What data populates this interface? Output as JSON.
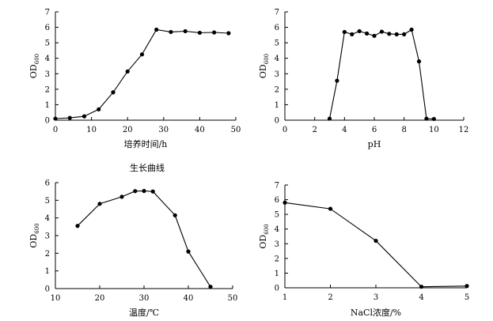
{
  "chart_data": [
    {
      "type": "line",
      "title": "",
      "caption": "生长曲线",
      "xlabel": "培养时间/h",
      "ylabel": "OD",
      "ylabel_sub": "600",
      "xlim": [
        0,
        50
      ],
      "ylim": [
        0,
        7
      ],
      "xticks": [
        0,
        10,
        20,
        30,
        40,
        50
      ],
      "yticks": [
        0,
        1,
        2,
        3,
        4,
        5,
        6,
        7
      ],
      "grid": false,
      "series": [
        {
          "name": "",
          "x": [
            0,
            4,
            8,
            12,
            16,
            20,
            24,
            28,
            32,
            36,
            40,
            44,
            48
          ],
          "y": [
            0.1,
            0.15,
            0.25,
            0.7,
            1.8,
            3.15,
            4.25,
            5.85,
            5.7,
            5.75,
            5.65,
            5.67,
            5.62
          ]
        }
      ]
    },
    {
      "type": "line",
      "title": "",
      "caption": "",
      "xlabel": "pH",
      "ylabel": "OD",
      "ylabel_sub": "600",
      "xlim": [
        0,
        12
      ],
      "ylim": [
        0,
        7
      ],
      "xticks": [
        0,
        2,
        4,
        6,
        8,
        10,
        12
      ],
      "yticks": [
        0,
        1,
        2,
        3,
        4,
        5,
        6,
        7
      ],
      "grid": false,
      "series": [
        {
          "name": "",
          "x": [
            3,
            3.5,
            4,
            4.5,
            5,
            5.5,
            6,
            6.5,
            7,
            7.5,
            8,
            8.5,
            9,
            9.5,
            10
          ],
          "y": [
            0.1,
            2.55,
            5.7,
            5.55,
            5.75,
            5.6,
            5.45,
            5.72,
            5.58,
            5.55,
            5.55,
            5.85,
            3.8,
            0.1,
            0.08
          ]
        }
      ]
    },
    {
      "type": "line",
      "title": "",
      "caption": "",
      "xlabel": "温度/℃",
      "ylabel": "OD",
      "ylabel_sub": "600",
      "xlim": [
        10,
        50
      ],
      "ylim": [
        0,
        6
      ],
      "xticks": [
        10,
        20,
        30,
        40,
        50
      ],
      "yticks": [
        0,
        1,
        2,
        3,
        4,
        5,
        6
      ],
      "grid": false,
      "series": [
        {
          "name": "",
          "x": [
            15,
            20,
            25,
            28,
            30,
            32,
            37,
            40,
            45
          ],
          "y": [
            3.55,
            4.8,
            5.2,
            5.52,
            5.53,
            5.5,
            4.15,
            2.1,
            0.1
          ]
        }
      ]
    },
    {
      "type": "line",
      "title": "",
      "caption": "",
      "xlabel": "NaCl浓度/%",
      "ylabel": "OD",
      "ylabel_sub": "600",
      "xlim": [
        1,
        5
      ],
      "ylim": [
        0,
        7
      ],
      "xticks": [
        1,
        2,
        3,
        4,
        5
      ],
      "yticks": [
        0,
        1,
        2,
        3,
        4,
        5,
        6,
        7
      ],
      "grid": false,
      "series": [
        {
          "name": "",
          "x": [
            1,
            2,
            3,
            4,
            5
          ],
          "y": [
            5.8,
            5.38,
            3.2,
            0.07,
            0.12
          ]
        }
      ]
    }
  ]
}
